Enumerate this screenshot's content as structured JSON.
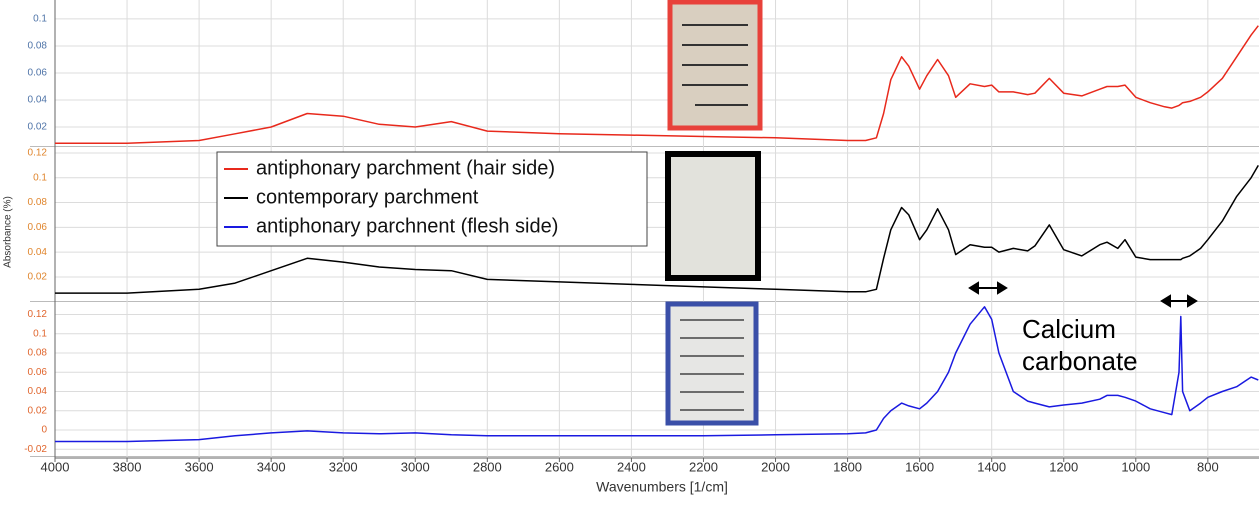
{
  "chart_data": [
    {
      "type": "line",
      "x": [
        4000,
        3800,
        3600,
        3500,
        3400,
        3300,
        3200,
        3100,
        3000,
        2900,
        2800,
        2600,
        2400,
        2200,
        2000,
        1800,
        1750,
        1720,
        1700,
        1680,
        1650,
        1630,
        1600,
        1580,
        1550,
        1520,
        1500,
        1460,
        1420,
        1400,
        1380,
        1340,
        1300,
        1280,
        1240,
        1200,
        1150,
        1100,
        1080,
        1050,
        1030,
        1000,
        960,
        920,
        900,
        880,
        875,
        870,
        850,
        820,
        800,
        760,
        720,
        680,
        660
      ],
      "xlim": [
        4000,
        658
      ],
      "ylim": [
        0.0067,
        0.114
      ],
      "yticks": [
        0.02,
        0.04,
        0.06,
        0.08,
        0.1
      ],
      "tick_color": "#4f74a8",
      "series": [
        {
          "name": "antiphonary parchment (hair side)",
          "color": "#e8291c",
          "values": [
            0.008,
            0.008,
            0.01,
            0.015,
            0.02,
            0.03,
            0.028,
            0.022,
            0.02,
            0.024,
            0.017,
            0.015,
            0.014,
            0.013,
            0.012,
            0.01,
            0.01,
            0.012,
            0.03,
            0.055,
            0.072,
            0.065,
            0.048,
            0.058,
            0.07,
            0.058,
            0.042,
            0.052,
            0.05,
            0.051,
            0.046,
            0.046,
            0.044,
            0.045,
            0.056,
            0.045,
            0.043,
            0.048,
            0.05,
            0.05,
            0.051,
            0.042,
            0.038,
            0.035,
            0.034,
            0.036,
            0.037,
            0.038,
            0.039,
            0.042,
            0.046,
            0.056,
            0.072,
            0.088,
            0.095
          ]
        }
      ]
    },
    {
      "type": "line",
      "x": [
        4000,
        3800,
        3600,
        3500,
        3400,
        3300,
        3200,
        3100,
        3000,
        2900,
        2800,
        2600,
        2400,
        2200,
        2000,
        1800,
        1750,
        1720,
        1700,
        1680,
        1650,
        1630,
        1600,
        1580,
        1550,
        1520,
        1500,
        1460,
        1420,
        1400,
        1380,
        1340,
        1300,
        1280,
        1240,
        1200,
        1150,
        1100,
        1080,
        1050,
        1030,
        1000,
        960,
        920,
        900,
        880,
        875,
        870,
        850,
        820,
        800,
        760,
        720,
        680,
        660
      ],
      "xlim": [
        4000,
        658
      ],
      "ylim": [
        0.0014,
        0.124
      ],
      "yticks": [
        0.02,
        0.04,
        0.06,
        0.08,
        0.1,
        0.12
      ],
      "tick_color": "#e0862e",
      "ylabel": "Absorbance (%)",
      "series": [
        {
          "name": "contemporary parchment",
          "color": "#000000",
          "values": [
            0.007,
            0.007,
            0.01,
            0.015,
            0.025,
            0.035,
            0.032,
            0.028,
            0.026,
            0.025,
            0.018,
            0.016,
            0.014,
            0.012,
            0.01,
            0.008,
            0.008,
            0.01,
            0.035,
            0.058,
            0.076,
            0.07,
            0.05,
            0.058,
            0.075,
            0.058,
            0.038,
            0.046,
            0.044,
            0.044,
            0.04,
            0.043,
            0.041,
            0.045,
            0.062,
            0.042,
            0.037,
            0.046,
            0.048,
            0.043,
            0.05,
            0.036,
            0.034,
            0.034,
            0.034,
            0.034,
            0.034,
            0.035,
            0.037,
            0.043,
            0.05,
            0.065,
            0.085,
            0.1,
            0.11
          ]
        }
      ]
    },
    {
      "type": "line",
      "x": [
        4000,
        3800,
        3600,
        3500,
        3400,
        3300,
        3200,
        3100,
        3000,
        2900,
        2800,
        2600,
        2400,
        2200,
        2000,
        1800,
        1750,
        1720,
        1700,
        1680,
        1650,
        1630,
        1600,
        1580,
        1550,
        1520,
        1500,
        1460,
        1420,
        1400,
        1380,
        1340,
        1300,
        1280,
        1240,
        1200,
        1150,
        1100,
        1080,
        1050,
        1030,
        1000,
        960,
        920,
        900,
        880,
        875,
        870,
        850,
        820,
        800,
        760,
        720,
        680,
        660
      ],
      "xlim": [
        4000,
        658
      ],
      "ylim": [
        -0.026,
        0.132
      ],
      "yticks": [
        -0.02,
        0,
        0.02,
        0.04,
        0.06,
        0.08,
        0.1,
        0.12
      ],
      "tick_color": "#e0662e",
      "xticks": [
        4000,
        3800,
        3600,
        3400,
        3200,
        3000,
        2800,
        2600,
        2400,
        2200,
        2000,
        1800,
        1600,
        1400,
        1200,
        1000,
        800
      ],
      "xlabel": "Wavenumbers [1/cm]",
      "annotation": "Calcium carbonate",
      "series": [
        {
          "name": "antiphonary parchnent (flesh side)",
          "color": "#1a1ae0",
          "values": [
            -0.012,
            -0.012,
            -0.01,
            -0.006,
            -0.003,
            -0.001,
            -0.003,
            -0.004,
            -0.003,
            -0.005,
            -0.006,
            -0.006,
            -0.006,
            -0.006,
            -0.005,
            -0.004,
            -0.003,
            0.0,
            0.012,
            0.02,
            0.028,
            0.025,
            0.022,
            0.028,
            0.04,
            0.06,
            0.08,
            0.11,
            0.128,
            0.115,
            0.08,
            0.04,
            0.03,
            0.028,
            0.024,
            0.026,
            0.028,
            0.032,
            0.036,
            0.036,
            0.034,
            0.03,
            0.022,
            0.018,
            0.016,
            0.06,
            0.118,
            0.04,
            0.02,
            0.028,
            0.034,
            0.04,
            0.045,
            0.055,
            0.052
          ]
        }
      ]
    }
  ]
}
